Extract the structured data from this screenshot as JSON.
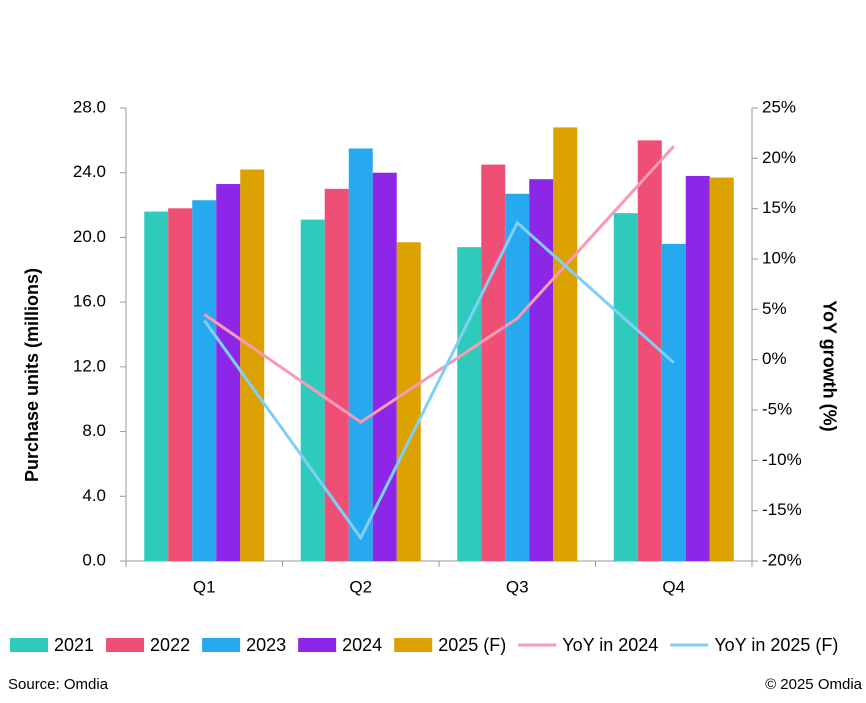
{
  "chart_data": {
    "type": "bar",
    "categories": [
      "Q1",
      "Q2",
      "Q3",
      "Q4"
    ],
    "y_label": "Purchase units (millions)",
    "y2_label": "YoY growth (%)",
    "series": [
      {
        "name": "2021",
        "color": "#2ecbbc",
        "values": [
          21.6,
          21.1,
          19.4,
          21.5
        ]
      },
      {
        "name": "2022",
        "color": "#ef4f74",
        "values": [
          21.8,
          23.0,
          24.5,
          26.0
        ]
      },
      {
        "name": "2023",
        "color": "#27a9ef",
        "values": [
          22.3,
          25.5,
          22.7,
          19.6
        ]
      },
      {
        "name": "2024",
        "color": "#8c27e8",
        "values": [
          23.3,
          24.0,
          23.6,
          23.8
        ]
      },
      {
        "name": "2025 (F)",
        "color": "#dba100",
        "values": [
          24.2,
          19.7,
          26.8,
          23.7
        ]
      },
      {
        "name": "YoY in 2024",
        "color": "#f79ab5",
        "type": "line",
        "axis": "y2",
        "values": [
          4.5,
          -6.2,
          4.1,
          21.2
        ]
      },
      {
        "name": "YoY in 2025 (F)",
        "color": "#7fcff7",
        "type": "line",
        "axis": "y2",
        "values": [
          3.9,
          -17.7,
          13.6,
          -0.3
        ]
      }
    ],
    "ylim": [
      0,
      28
    ],
    "yticks": [
      {
        "value": 0,
        "label": "0.0"
      },
      {
        "value": 4,
        "label": "4.0"
      },
      {
        "value": 8,
        "label": "8.0"
      },
      {
        "value": 12,
        "label": "12.0"
      },
      {
        "value": 16,
        "label": "16.0"
      },
      {
        "value": 20,
        "label": "20.0"
      },
      {
        "value": 24,
        "label": "24.0"
      },
      {
        "value": 28,
        "label": "28.0"
      }
    ],
    "y2lim": [
      -20,
      25
    ],
    "y2ticks": [
      {
        "value": -20,
        "label": "-20%"
      },
      {
        "value": -15,
        "label": "-15%"
      },
      {
        "value": -10,
        "label": "-10%"
      },
      {
        "value": -5,
        "label": "-5%"
      },
      {
        "value": 0,
        "label": "0%"
      },
      {
        "value": 5,
        "label": "5%"
      },
      {
        "value": 10,
        "label": "10%"
      },
      {
        "value": 15,
        "label": "15%"
      },
      {
        "value": 20,
        "label": "20%"
      },
      {
        "value": 25,
        "label": "25%"
      }
    ],
    "source": "Source: Omdia",
    "copyright": "© 2025 Omdia"
  }
}
